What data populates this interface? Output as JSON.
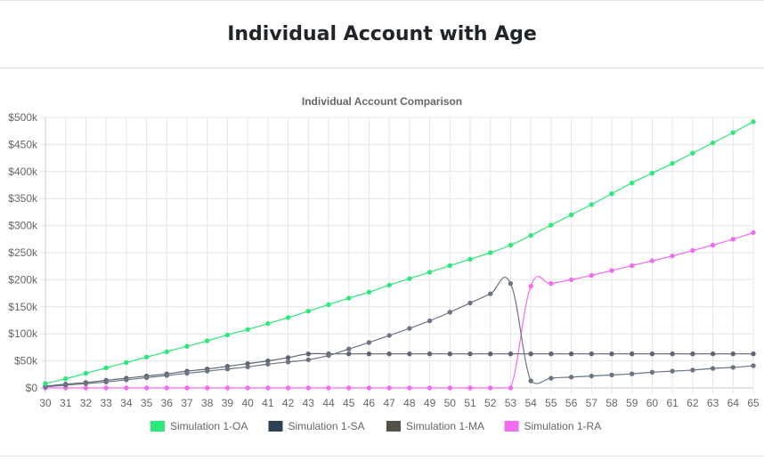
{
  "page": {
    "title": "Individual Account with Age"
  },
  "chart_data": {
    "type": "line",
    "title": "Individual Account Comparison",
    "xlabel": "",
    "ylabel": "",
    "x": [
      30,
      31,
      32,
      33,
      34,
      35,
      36,
      37,
      38,
      39,
      40,
      41,
      42,
      43,
      44,
      45,
      46,
      47,
      48,
      49,
      50,
      51,
      52,
      53,
      54,
      55,
      56,
      57,
      58,
      59,
      60,
      61,
      62,
      63,
      64,
      65
    ],
    "ylim": [
      0,
      500000
    ],
    "y_ticks": [
      0,
      50000,
      100000,
      150000,
      200000,
      250000,
      300000,
      350000,
      400000,
      450000,
      500000
    ],
    "y_tick_labels": [
      "$0",
      "$50k",
      "$100k",
      "$150k",
      "$200k",
      "$250k",
      "$300k",
      "$350k",
      "$400k",
      "$450k",
      "$500k"
    ],
    "grid": true,
    "legend_position": "bottom",
    "series": [
      {
        "name": "Simulation 1-OA",
        "color": "#2de87a",
        "values": [
          8000,
          17000,
          27000,
          37000,
          47000,
          57000,
          67000,
          77000,
          87000,
          98000,
          108000,
          119000,
          130000,
          142000,
          154000,
          166000,
          177000,
          190000,
          202000,
          214000,
          226000,
          238000,
          250000,
          264000,
          282000,
          301000,
          320000,
          339000,
          359000,
          379000,
          397000,
          415000,
          434000,
          453000,
          472000,
          492000
        ]
      },
      {
        "name": "Simulation 1-SA",
        "color": "#2e4150",
        "values": [
          2000,
          5000,
          8000,
          11000,
          15000,
          19000,
          23000,
          27000,
          31000,
          35000,
          39000,
          44000,
          48000,
          52000,
          60000,
          72000,
          84000,
          97000,
          110000,
          124000,
          140000,
          157000,
          174000,
          193000,
          13000,
          18000,
          20000,
          22000,
          24000,
          26000,
          29000,
          31000,
          33000,
          36000,
          38000,
          41000
        ]
      },
      {
        "name": "Simulation 1-MA",
        "color": "#545247",
        "values": [
          3000,
          7000,
          10000,
          14000,
          18000,
          22000,
          26000,
          31000,
          35000,
          40000,
          45000,
          50000,
          56000,
          63000,
          63000,
          63000,
          63000,
          63000,
          63000,
          63000,
          63000,
          63000,
          63000,
          63000,
          63000,
          63000,
          63000,
          63000,
          63000,
          63000,
          63000,
          63000,
          63000,
          63000,
          63000,
          63000
        ]
      },
      {
        "name": "Simulation 1-RA",
        "color": "#f36cf0",
        "values": [
          0,
          0,
          0,
          0,
          0,
          0,
          0,
          0,
          0,
          0,
          0,
          0,
          0,
          0,
          0,
          0,
          0,
          0,
          0,
          0,
          0,
          0,
          0,
          0,
          188000,
          193000,
          200000,
          208000,
          217000,
          226000,
          235000,
          244000,
          254000,
          264000,
          275000,
          287000
        ]
      }
    ]
  }
}
